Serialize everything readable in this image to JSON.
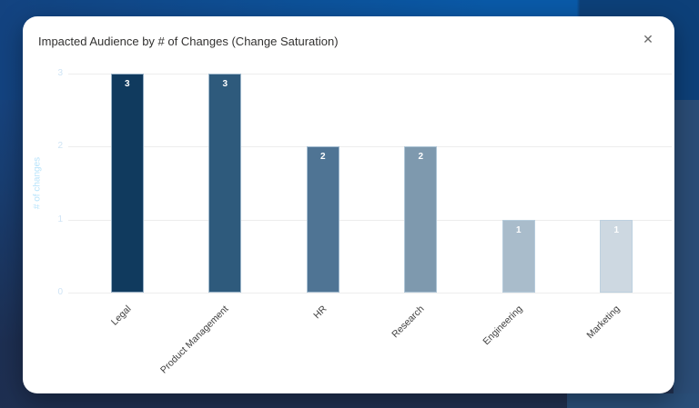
{
  "modal": {
    "title": "Impacted Audience by # of Changes (Change Saturation)",
    "close_icon": "✕"
  },
  "chart_data": {
    "type": "bar",
    "title": "Impacted Audience by # of Changes (Change Saturation)",
    "categories": [
      "Legal",
      "Product Management",
      "HR",
      "Research",
      "Engineering",
      "Marketing"
    ],
    "values": [
      3,
      3,
      2,
      2,
      1,
      1
    ],
    "bar_colors": [
      "#103a5e",
      "#2e5a7c",
      "#4f7494",
      "#7e99ae",
      "#a9bccb",
      "#cdd8e1"
    ],
    "value_label_color": "#ffffff",
    "xlabel": "",
    "ylabel": "# of changes",
    "ylabel_color": "#b7e3fb",
    "ytick_color": "#cfe4f5",
    "yticks": [
      3,
      2,
      1,
      0
    ],
    "ylim": [
      0,
      3
    ],
    "grid": true,
    "gridline_color": "#ededed",
    "xtick_rotation": -45,
    "legend_position": "none"
  },
  "backdrop": {
    "top_blue": "#0a5aa8",
    "top_right_block": "#0d4079",
    "base_dark": "#1d2f52",
    "right_column": "#2b4d77",
    "bottom_right_block": "#2a4f79"
  }
}
